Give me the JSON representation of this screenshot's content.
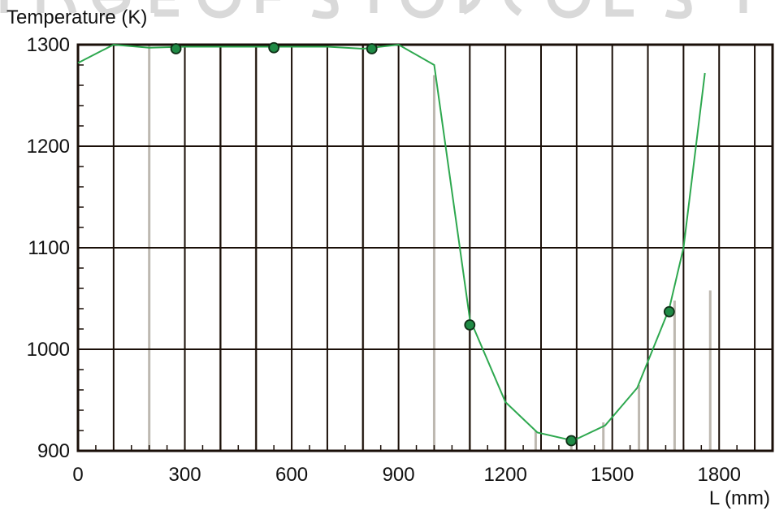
{
  "chart_data": {
    "type": "line",
    "title": "",
    "xlabel": "L (mm)",
    "ylabel": "Temperature (K)",
    "xlim": [
      0,
      1950
    ],
    "ylim": [
      900,
      1300
    ],
    "x_ticks": [
      0,
      300,
      600,
      900,
      1200,
      1500,
      1800
    ],
    "y_ticks": [
      900,
      1000,
      1100,
      1200,
      1300
    ],
    "grid": true,
    "legend": "none",
    "colors": {
      "line": "#2ea84f",
      "marker_fill": "#1f8a45",
      "marker_edge": "#0f2f17",
      "grid": "#1a0f08",
      "bars": "#bdb8b0",
      "watermark": "#d9d9d9"
    },
    "series": [
      {
        "kind": "line",
        "x": [
          0,
          100,
          200,
          300,
          400,
          500,
          600,
          700,
          800,
          900,
          1000,
          1100,
          1200,
          1290,
          1390,
          1480,
          1570,
          1660,
          1700,
          1760
        ],
        "y": [
          1282,
          1300,
          1297,
          1298,
          1298,
          1298,
          1298,
          1298,
          1296,
          1300,
          1280,
          1030,
          948,
          918,
          910,
          925,
          962,
          1040,
          1100,
          1272
        ]
      },
      {
        "kind": "scatter",
        "x": [
          275,
          550,
          825,
          1100,
          1385,
          1660
        ],
        "y": [
          1296,
          1297,
          1296,
          1024,
          910,
          1037
        ]
      }
    ],
    "bars": {
      "x": [
        200,
        400,
        500,
        800,
        1000,
        1100,
        1200,
        1285,
        1385,
        1475,
        1575,
        1675,
        1775
      ],
      "y": [
        1300,
        1300,
        1300,
        1300,
        1270,
        1025,
        955,
        920,
        910,
        928,
        965,
        1048,
        1058
      ]
    },
    "vlines_x": [
      100,
      300,
      400,
      500,
      600,
      700,
      800,
      900,
      1100,
      1200,
      1300,
      1400,
      1500,
      1600,
      1700,
      1800,
      1900
    ]
  }
}
